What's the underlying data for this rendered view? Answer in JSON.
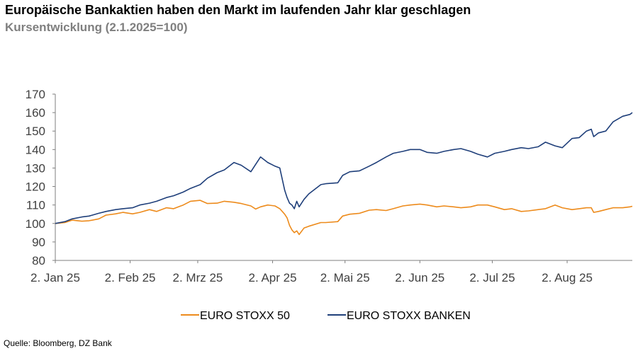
{
  "header": {
    "title": "Europäische Bankaktien haben den Markt im laufenden Jahr klar geschlagen",
    "subtitle": "Kursentwicklung (2.1.2025=100)"
  },
  "footer": {
    "source": "Quelle: Bloomberg, DZ Bank"
  },
  "chart_data": {
    "type": "line",
    "title": "Europäische Bankaktien haben den Markt im laufenden Jahr klar geschlagen",
    "subtitle": "Kursentwicklung (2.1.2025=100)",
    "xlabel": "",
    "ylabel": "",
    "ylim": [
      80,
      170
    ],
    "yticks": [
      80,
      90,
      100,
      110,
      120,
      130,
      140,
      150,
      160,
      170
    ],
    "xlim": [
      "2025-01-02",
      "2025-08-29"
    ],
    "xticks": [
      {
        "date": "2025-01-02",
        "label": "2. Jan 25"
      },
      {
        "date": "2025-02-02",
        "label": "2. Feb 25"
      },
      {
        "date": "2025-03-02",
        "label": "2. Mrz 25"
      },
      {
        "date": "2025-04-02",
        "label": "2. Apr 25"
      },
      {
        "date": "2025-05-02",
        "label": "2. Mai 25"
      },
      {
        "date": "2025-06-02",
        "label": "2. Jun 25"
      },
      {
        "date": "2025-07-02",
        "label": "2. Jul 25"
      },
      {
        "date": "2025-08-02",
        "label": "2. Aug 25"
      }
    ],
    "grid": false,
    "legend_position": "bottom",
    "series": [
      {
        "name": "EURO STOXX 50",
        "color": "#ed8b1c",
        "points": [
          [
            "2025-01-02",
            100
          ],
          [
            "2025-01-06",
            100.5
          ],
          [
            "2025-01-09",
            101.8
          ],
          [
            "2025-01-13",
            101.2
          ],
          [
            "2025-01-16",
            101.5
          ],
          [
            "2025-01-20",
            102.5
          ],
          [
            "2025-01-23",
            104.5
          ],
          [
            "2025-01-27",
            105.2
          ],
          [
            "2025-01-30",
            106
          ],
          [
            "2025-02-03",
            105.2
          ],
          [
            "2025-02-06",
            106
          ],
          [
            "2025-02-10",
            107.5
          ],
          [
            "2025-02-13",
            106.5
          ],
          [
            "2025-02-17",
            108.5
          ],
          [
            "2025-02-20",
            108
          ],
          [
            "2025-02-24",
            110
          ],
          [
            "2025-02-27",
            112
          ],
          [
            "2025-03-03",
            112.5
          ],
          [
            "2025-03-06",
            110.8
          ],
          [
            "2025-03-10",
            111
          ],
          [
            "2025-03-13",
            112
          ],
          [
            "2025-03-17",
            111.5
          ],
          [
            "2025-03-20",
            110.8
          ],
          [
            "2025-03-24",
            109.5
          ],
          [
            "2025-03-26",
            107.8
          ],
          [
            "2025-03-28",
            109
          ],
          [
            "2025-03-31",
            110
          ],
          [
            "2025-04-03",
            109.5
          ],
          [
            "2025-04-05",
            108
          ],
          [
            "2025-04-07",
            105
          ],
          [
            "2025-04-08",
            103
          ],
          [
            "2025-04-09",
            99
          ],
          [
            "2025-04-10",
            96.5
          ],
          [
            "2025-04-11",
            95
          ],
          [
            "2025-04-12",
            96
          ],
          [
            "2025-04-13",
            94
          ],
          [
            "2025-04-15",
            97.5
          ],
          [
            "2025-04-17",
            98.5
          ],
          [
            "2025-04-22",
            100.5
          ],
          [
            "2025-04-24",
            100.5
          ],
          [
            "2025-04-29",
            101
          ],
          [
            "2025-05-01",
            104
          ],
          [
            "2025-05-04",
            105
          ],
          [
            "2025-05-08",
            105.5
          ],
          [
            "2025-05-12",
            107.2
          ],
          [
            "2025-05-15",
            107.5
          ],
          [
            "2025-05-19",
            107
          ],
          [
            "2025-05-22",
            108
          ],
          [
            "2025-05-26",
            109.5
          ],
          [
            "2025-05-29",
            110
          ],
          [
            "2025-06-02",
            110.5
          ],
          [
            "2025-06-05",
            110
          ],
          [
            "2025-06-09",
            109
          ],
          [
            "2025-06-12",
            109.5
          ],
          [
            "2025-06-16",
            109
          ],
          [
            "2025-06-19",
            108.5
          ],
          [
            "2025-06-23",
            109
          ],
          [
            "2025-06-26",
            110
          ],
          [
            "2025-06-30",
            110
          ],
          [
            "2025-07-03",
            109
          ],
          [
            "2025-07-07",
            107.5
          ],
          [
            "2025-07-10",
            108
          ],
          [
            "2025-07-14",
            106.5
          ],
          [
            "2025-07-17",
            106.8
          ],
          [
            "2025-07-21",
            107.5
          ],
          [
            "2025-07-24",
            108
          ],
          [
            "2025-07-28",
            110
          ],
          [
            "2025-07-31",
            108.5
          ],
          [
            "2025-08-04",
            107.5
          ],
          [
            "2025-08-07",
            108
          ],
          [
            "2025-08-10",
            108.5
          ],
          [
            "2025-08-12",
            108.5
          ],
          [
            "2025-08-13",
            106
          ],
          [
            "2025-08-15",
            106.5
          ],
          [
            "2025-08-18",
            107.5
          ],
          [
            "2025-08-21",
            108.5
          ],
          [
            "2025-08-25",
            108.5
          ],
          [
            "2025-08-28",
            109
          ],
          [
            "2025-08-29",
            109.3
          ]
        ]
      },
      {
        "name": "EURO STOXX BANKEN",
        "color": "#1f3f7a",
        "points": [
          [
            "2025-01-02",
            100
          ],
          [
            "2025-01-06",
            101
          ],
          [
            "2025-01-09",
            102.5
          ],
          [
            "2025-01-13",
            103.5
          ],
          [
            "2025-01-16",
            104
          ],
          [
            "2025-01-20",
            105.5
          ],
          [
            "2025-01-23",
            106.5
          ],
          [
            "2025-01-27",
            107.5
          ],
          [
            "2025-01-30",
            108
          ],
          [
            "2025-02-03",
            108.5
          ],
          [
            "2025-02-06",
            110
          ],
          [
            "2025-02-10",
            111
          ],
          [
            "2025-02-13",
            112
          ],
          [
            "2025-02-17",
            114
          ],
          [
            "2025-02-20",
            115
          ],
          [
            "2025-02-24",
            117
          ],
          [
            "2025-02-27",
            119
          ],
          [
            "2025-03-03",
            121
          ],
          [
            "2025-03-06",
            124.5
          ],
          [
            "2025-03-10",
            127.5
          ],
          [
            "2025-03-13",
            129
          ],
          [
            "2025-03-17",
            133
          ],
          [
            "2025-03-20",
            131.5
          ],
          [
            "2025-03-24",
            128
          ],
          [
            "2025-03-26",
            132
          ],
          [
            "2025-03-28",
            136
          ],
          [
            "2025-03-31",
            133
          ],
          [
            "2025-04-03",
            131
          ],
          [
            "2025-04-05",
            130
          ],
          [
            "2025-04-07",
            118
          ],
          [
            "2025-04-08",
            114
          ],
          [
            "2025-04-09",
            111
          ],
          [
            "2025-04-10",
            110
          ],
          [
            "2025-04-11",
            108
          ],
          [
            "2025-04-12",
            112
          ],
          [
            "2025-04-13",
            109
          ],
          [
            "2025-04-15",
            113
          ],
          [
            "2025-04-17",
            116
          ],
          [
            "2025-04-22",
            121
          ],
          [
            "2025-04-24",
            121.5
          ],
          [
            "2025-04-29",
            122
          ],
          [
            "2025-05-01",
            126
          ],
          [
            "2025-05-04",
            128
          ],
          [
            "2025-05-08",
            128.5
          ],
          [
            "2025-05-12",
            131
          ],
          [
            "2025-05-15",
            133
          ],
          [
            "2025-05-19",
            136
          ],
          [
            "2025-05-22",
            138
          ],
          [
            "2025-05-26",
            139
          ],
          [
            "2025-05-29",
            140
          ],
          [
            "2025-06-02",
            140
          ],
          [
            "2025-06-05",
            138.5
          ],
          [
            "2025-06-09",
            138
          ],
          [
            "2025-06-12",
            139
          ],
          [
            "2025-06-16",
            140
          ],
          [
            "2025-06-19",
            140.5
          ],
          [
            "2025-06-23",
            139
          ],
          [
            "2025-06-26",
            137.5
          ],
          [
            "2025-06-30",
            136
          ],
          [
            "2025-07-03",
            138
          ],
          [
            "2025-07-07",
            139
          ],
          [
            "2025-07-10",
            140
          ],
          [
            "2025-07-14",
            141
          ],
          [
            "2025-07-17",
            140.5
          ],
          [
            "2025-07-21",
            141.5
          ],
          [
            "2025-07-24",
            144
          ],
          [
            "2025-07-28",
            142
          ],
          [
            "2025-07-31",
            141
          ],
          [
            "2025-08-04",
            146
          ],
          [
            "2025-08-07",
            146.5
          ],
          [
            "2025-08-10",
            150
          ],
          [
            "2025-08-12",
            151
          ],
          [
            "2025-08-13",
            147
          ],
          [
            "2025-08-15",
            149
          ],
          [
            "2025-08-18",
            150
          ],
          [
            "2025-08-21",
            155
          ],
          [
            "2025-08-25",
            158
          ],
          [
            "2025-08-28",
            159
          ],
          [
            "2025-08-29",
            160
          ]
        ]
      }
    ]
  }
}
